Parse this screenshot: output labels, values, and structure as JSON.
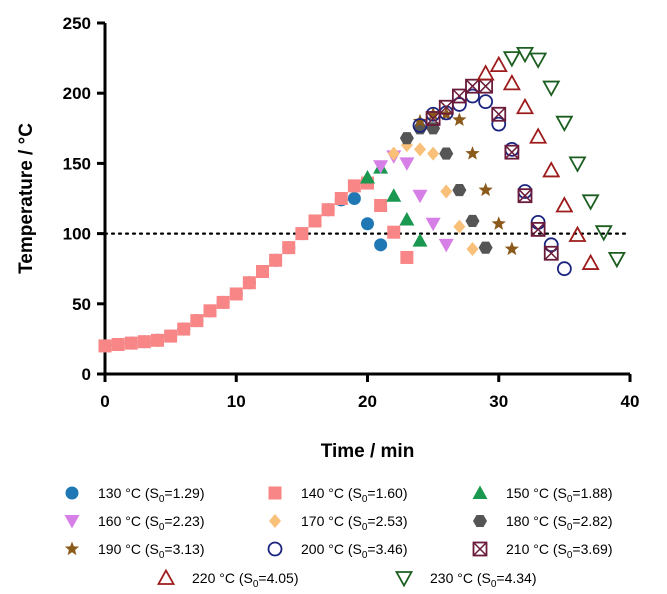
{
  "chart_data": {
    "type": "scatter",
    "title": "",
    "xlabel": "Time / min",
    "ylabel": "Temperature / °C",
    "xlim": [
      0,
      40
    ],
    "ylim": [
      0,
      250
    ],
    "xticks": [
      0,
      10,
      20,
      30,
      40
    ],
    "yticks": [
      0,
      50,
      100,
      150,
      200,
      250
    ],
    "grid": false,
    "reference_line": {
      "y": 100,
      "style": "dotted",
      "color": "#000000"
    },
    "legend_position": "bottom",
    "series": [
      {
        "name": "130 °C (S₀=1.29)",
        "legend": {
          "temp": "130 °C (S",
          "sub": "0",
          "val": "=1.29)"
        },
        "marker": "circle",
        "filled": true,
        "color": "#1f77b4",
        "x": [
          0,
          1,
          2,
          3,
          4,
          5,
          6,
          7,
          8,
          9,
          10,
          11,
          12,
          13,
          14,
          15,
          16,
          17,
          18,
          19,
          20,
          21
        ],
        "y": [
          20,
          21,
          22,
          23,
          24,
          27,
          32,
          38,
          45,
          51,
          57,
          65,
          73,
          81,
          90,
          100,
          109,
          117,
          124,
          125,
          107,
          92
        ]
      },
      {
        "name": "140 °C (S₀=1.60)",
        "legend": {
          "temp": "140 °C (S",
          "sub": "0",
          "val": "=1.60)"
        },
        "marker": "square",
        "filled": true,
        "color": "#f88686",
        "x": [
          0,
          1,
          2,
          3,
          4,
          5,
          6,
          7,
          8,
          9,
          10,
          11,
          12,
          13,
          14,
          15,
          16,
          17,
          18,
          19,
          20,
          21,
          22,
          23
        ],
        "y": [
          20,
          21,
          22,
          23,
          24,
          27,
          32,
          38,
          45,
          51,
          57,
          65,
          73,
          81,
          90,
          100,
          109,
          117,
          125,
          134,
          136,
          120,
          101,
          83
        ]
      },
      {
        "name": "150 °C (S₀=1.88)",
        "legend": {
          "temp": "150 °C (S",
          "sub": "0",
          "val": "=1.88)"
        },
        "marker": "triangle-up",
        "filled": true,
        "color": "#1a9850",
        "x": [
          20,
          21,
          22,
          23,
          24
        ],
        "y": [
          140,
          147,
          127,
          110,
          95
        ]
      },
      {
        "name": "160 °C (S₀=2.23)",
        "legend": {
          "temp": "160 °C (S",
          "sub": "0",
          "val": "=2.23)"
        },
        "marker": "triangle-down",
        "filled": true,
        "color": "#d67fe6",
        "x": [
          21,
          22,
          23,
          24,
          25,
          26
        ],
        "y": [
          148,
          155,
          150,
          127,
          107,
          92
        ]
      },
      {
        "name": "170 °C (S₀=2.53)",
        "legend": {
          "temp": "170 °C (S",
          "sub": "0",
          "val": "=2.53)"
        },
        "marker": "diamond",
        "filled": true,
        "color": "#f9c07a",
        "x": [
          22,
          23,
          24,
          25,
          26,
          27,
          28
        ],
        "y": [
          157,
          163,
          160,
          157,
          130,
          105,
          89
        ]
      },
      {
        "name": "180 °C (S₀=2.82)",
        "legend": {
          "temp": "180 °C (S",
          "sub": "0",
          "val": "=2.82)"
        },
        "marker": "hexagon",
        "filled": true,
        "color": "#555555",
        "x": [
          23,
          24,
          25,
          26,
          27,
          28,
          29
        ],
        "y": [
          168,
          175,
          175,
          157,
          131,
          109,
          90
        ]
      },
      {
        "name": "190 °C (S₀=3.13)",
        "legend": {
          "temp": "190 °C (S",
          "sub": "0",
          "val": "=3.13)"
        },
        "marker": "star",
        "filled": true,
        "color": "#8b5a1b",
        "x": [
          24,
          25,
          26,
          27,
          28,
          29,
          30,
          31
        ],
        "y": [
          180,
          185,
          185,
          181,
          157,
          131,
          107,
          89
        ]
      },
      {
        "name": "200 °C (S₀=3.46)",
        "legend": {
          "temp": "200 °C (S",
          "sub": "0",
          "val": "=3.46)"
        },
        "marker": "circle",
        "filled": false,
        "color": "#1a237e",
        "x": [
          24,
          25,
          26,
          27,
          28,
          29,
          30,
          31,
          32,
          33,
          34,
          35
        ],
        "y": [
          177,
          185,
          186,
          192,
          198,
          194,
          178,
          160,
          130,
          108,
          92,
          75
        ]
      },
      {
        "name": "210 °C (S₀=3.69)",
        "legend": {
          "temp": "210 °C (S",
          "sub": "0",
          "val": "=3.69)"
        },
        "marker": "boxx",
        "filled": false,
        "color": "#6a1b3a",
        "x": [
          25,
          26,
          27,
          28,
          29,
          30,
          31,
          32,
          33,
          34
        ],
        "y": [
          182,
          190,
          198,
          205,
          205,
          185,
          158,
          127,
          103,
          86
        ]
      },
      {
        "name": "220 °C (S₀=4.05)",
        "legend": {
          "temp": "220 °C (S",
          "sub": "0",
          "val": "=4.05)"
        },
        "marker": "triangle-up",
        "filled": false,
        "color": "#9e1b1b",
        "x": [
          29,
          30,
          31,
          32,
          33,
          34,
          35,
          36,
          37
        ],
        "y": [
          214,
          220,
          207,
          190,
          169,
          145,
          120,
          99,
          79
        ]
      },
      {
        "name": "230 °C (S₀=4.34)",
        "legend": {
          "temp": "230 °C (S",
          "sub": "0",
          "val": "=4.34)"
        },
        "marker": "triangle-down",
        "filled": false,
        "color": "#1b5e20",
        "x": [
          31,
          32,
          33,
          34,
          35,
          36,
          37,
          38,
          39
        ],
        "y": [
          225,
          228,
          224,
          204,
          179,
          150,
          123,
          101,
          82
        ]
      }
    ]
  }
}
